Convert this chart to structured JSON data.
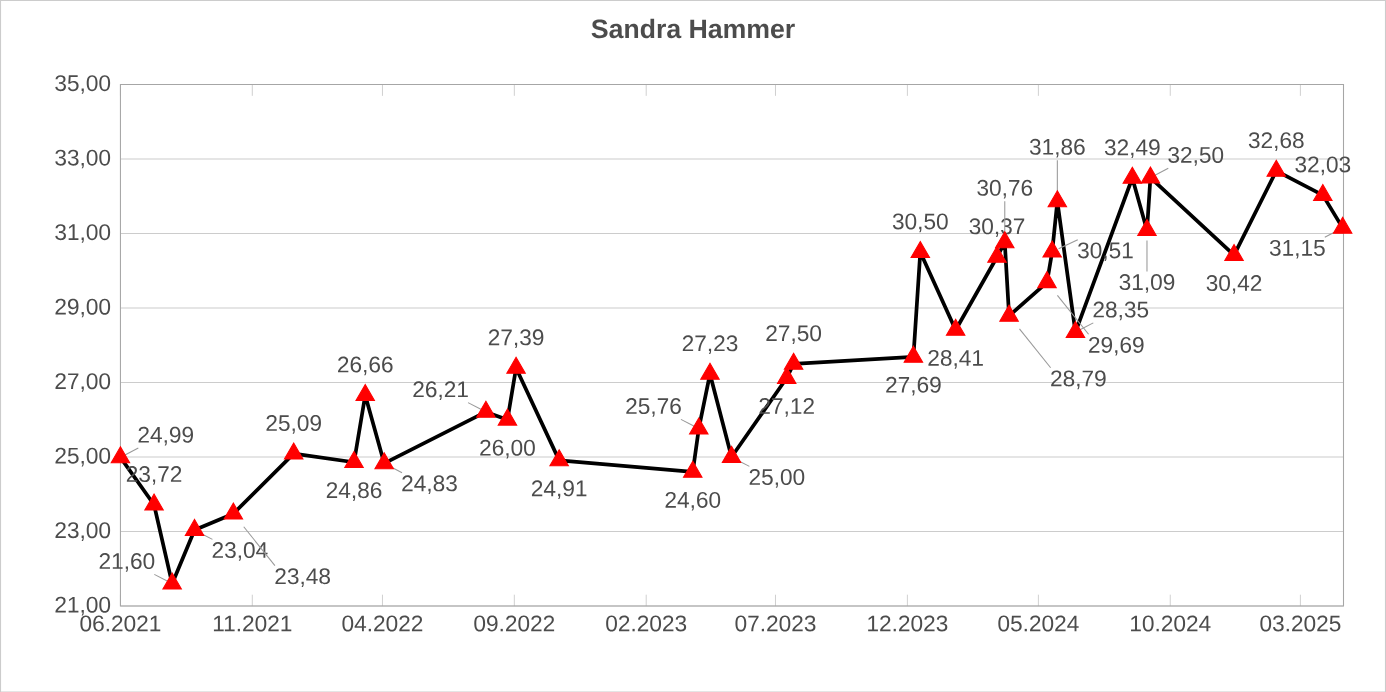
{
  "chart_data": {
    "type": "line",
    "title": "Sandra Hammer",
    "x": [
      "2021-06-01",
      "2021-07-10",
      "2021-07-31",
      "2021-08-26",
      "2021-10-10",
      "2021-12-19",
      "2022-02-27",
      "2022-03-12",
      "2022-04-03",
      "2022-07-30",
      "2022-08-24",
      "2022-09-03",
      "2022-10-23",
      "2023-03-27",
      "2023-04-03",
      "2023-04-16",
      "2023-05-11",
      "2023-07-14",
      "2023-07-22",
      "2023-12-08",
      "2023-12-16",
      "2024-01-26",
      "2024-03-14",
      "2024-03-23",
      "2024-03-28",
      "2024-05-11",
      "2024-05-17",
      "2024-05-23",
      "2024-06-13",
      "2024-08-18",
      "2024-09-04",
      "2024-09-08",
      "2024-12-14",
      "2025-02-01",
      "2025-03-27",
      "2025-04-19"
    ],
    "series": [
      {
        "color": "#000000",
        "colors": [
          "#ff0000",
          "#ff0000",
          "#ff0000",
          "#ff0000",
          "#ff0000",
          "#ff0000",
          "#ff0000",
          "#ff0000",
          "#ff0000",
          "#ff0000",
          "#ff0000",
          "#ff0000",
          "#ff0000",
          "#ff0000",
          "#ff0000",
          "#ff0000",
          "#ff0000",
          "#ff0000",
          "#ff0000",
          "#ff0000",
          "#ff0000",
          "#ff0000",
          "#ff0000",
          "#ff0000",
          "#ff0000",
          "#ff0000",
          "#ff0000",
          "#ff0000",
          "#ff0000",
          "#ff0000",
          "#ff0000",
          "#ff0000",
          "#ff0000",
          "#ff0000",
          "#ff0000",
          "#ff0000"
        ],
        "values": [
          24.99,
          23.72,
          21.6,
          23.04,
          23.48,
          25.09,
          24.86,
          26.66,
          24.83,
          26.21,
          26.0,
          27.39,
          24.91,
          24.6,
          25.76,
          27.23,
          25.0,
          27.12,
          27.5,
          27.69,
          30.5,
          28.41,
          30.37,
          30.76,
          28.79,
          29.69,
          30.51,
          31.86,
          28.35,
          32.49,
          31.09,
          32.5,
          30.42,
          32.68,
          32.03,
          31.15
        ],
        "value_labels": [
          "24,99",
          "23,72",
          "21,60",
          "23,04",
          "23,48",
          "25,09",
          "24,86",
          "26,66",
          "24,83",
          "26,21",
          "26,00",
          "27,39",
          "24,91",
          "24,60",
          "25,76",
          "27,23",
          "25,00",
          "27,12",
          "27,50",
          "27,69",
          "30,50",
          "28,41",
          "30,37",
          "30,76",
          "28,79",
          "29,69",
          "30,51",
          "31,86",
          "28,35",
          "32,49",
          "31,09",
          "32,50",
          "30,42",
          "32,68",
          "32,03",
          "31,15"
        ]
      }
    ],
    "xlim": [
      "2021-06-01",
      "2025-04-20"
    ],
    "xticks": [
      {
        "value": "2021-06-01",
        "label": "06.2021"
      },
      {
        "value": "2021-11-01",
        "label": "11.2021"
      },
      {
        "value": "2022-04-01",
        "label": "04.2022"
      },
      {
        "value": "2022-09-01",
        "label": "09.2022"
      },
      {
        "value": "2023-02-01",
        "label": "02.2023"
      },
      {
        "value": "2023-07-01",
        "label": "07.2023"
      },
      {
        "value": "2023-12-01",
        "label": "12.2023"
      },
      {
        "value": "2024-05-01",
        "label": "05.2024"
      },
      {
        "value": "2024-10-01",
        "label": "10.2024"
      },
      {
        "value": "2025-03-01",
        "label": "03.2025"
      }
    ],
    "ylim": [
      21,
      35
    ],
    "yticks": [
      {
        "value": 21,
        "label": "21,00"
      },
      {
        "value": 23,
        "label": "23,00"
      },
      {
        "value": 25,
        "label": "25,00"
      },
      {
        "value": 27,
        "label": "27,00"
      },
      {
        "value": 29,
        "label": "29,00"
      },
      {
        "value": 31,
        "label": "31,00"
      },
      {
        "value": 33,
        "label": "33,00"
      },
      {
        "value": 35,
        "label": "35,00"
      }
    ],
    "grid": "y",
    "marker": "triangle",
    "line_style": "solid"
  }
}
